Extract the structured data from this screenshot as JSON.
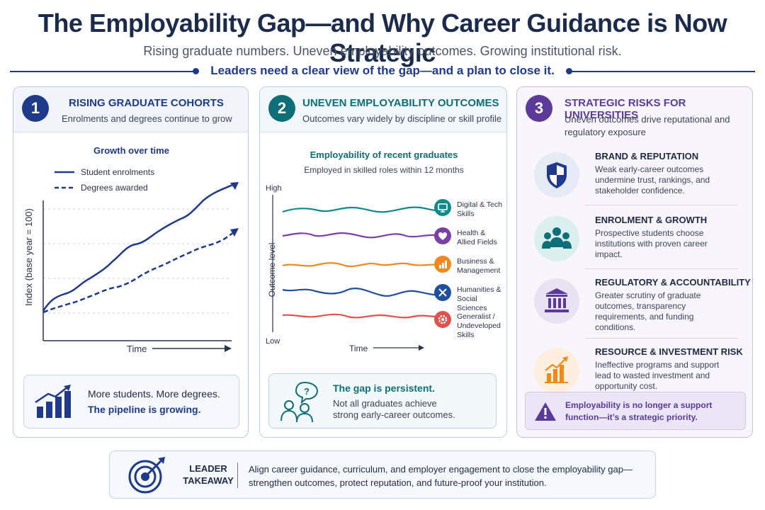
{
  "header": {
    "title": "The Employability Gap—and Why Career Guidance is Now Strategic",
    "subtitle": "Rising graduate numbers. Uneven employability outcomes. Growing institutional risk.",
    "lead": "Leaders need a clear view of the gap—and a plan to close it."
  },
  "panel1": {
    "number": "1",
    "title": "RISING GRADUATE COHORTS",
    "subtitle": "Enrolments and degrees continue to grow",
    "chart_title": "Growth over time",
    "legend": [
      "Student enrolments",
      "Degrees awarded"
    ],
    "ylabel": "Index (base year = 100)",
    "xlabel": "Time",
    "card_line1": "More students. More degrees.",
    "card_line2": "The pipeline is growing."
  },
  "panel2": {
    "number": "2",
    "title": "UNEVEN EMPLOYABILITY OUTCOMES",
    "subtitle": "Outcomes vary widely by discipline or skill profile",
    "chart_title": "Employability of recent graduates",
    "chart_subtitle": "Employed in skilled roles within 12 months",
    "y_high": "High",
    "y_low": "Low",
    "ylabel": "Outcome level",
    "xlabel": "Time",
    "categories": [
      {
        "l1": "Digital & Tech",
        "l2": "Skills",
        "color": "#0e8a8a",
        "icon": "monitor-icon"
      },
      {
        "l1": "Health &",
        "l2": "Allied Fields",
        "color": "#7a3fa8",
        "icon": "heart-icon"
      },
      {
        "l1": "Business &",
        "l2": "Management",
        "color": "#f08a1c",
        "icon": "bar-chart-icon"
      },
      {
        "l1": "Humanities &",
        "l2": "Social Sciences",
        "color": "#1f4fa0",
        "icon": "tools-icon"
      },
      {
        "l1": "Generalist /",
        "l2": "Undeveloped",
        "l3": "Skills",
        "color": "#e0524d",
        "icon": "gear-icon"
      }
    ],
    "card_line1": "The gap is persistent.",
    "card_line2a": "Not all graduates achieve",
    "card_line2b": "strong early-career outcomes."
  },
  "panel3": {
    "number": "3",
    "title": "STRATEGIC RISKS FOR UNIVERSITIES",
    "subtitle": "Uneven outcomes drive reputational and regulatory exposure",
    "risks": [
      {
        "title": "BRAND & REPUTATION",
        "text": "Weak early-career outcomes undermine trust, rankings, and stakeholder confidence.",
        "icon": "shield-icon"
      },
      {
        "title": "ENROLMENT & GROWTH",
        "text": "Prospective students choose institutions with proven career impact.",
        "icon": "people-icon"
      },
      {
        "title": "REGULATORY & ACCOUNTABILITY",
        "text": "Greater scrutiny of graduate outcomes, transparency requirements, and funding conditions.",
        "icon": "institution-icon"
      },
      {
        "title": "RESOURCE & INVESTMENT RISK",
        "text": "Ineffective programs and support lead to wasted investment and opportunity cost.",
        "icon": "investment-chart-icon"
      }
    ],
    "alert": "Employability is no longer a support function—it’s a strategic priority."
  },
  "footer": {
    "label": "LEADER TAKEAWAY",
    "text": "Align career guidance, curriculum, and employer engagement to close the employability gap—strengthen outcomes, protect reputation, and future-proof your institution."
  },
  "colors": {
    "navy": "#1f3a8a",
    "teal": "#0e6f78",
    "purple": "#5b3a9a"
  }
}
